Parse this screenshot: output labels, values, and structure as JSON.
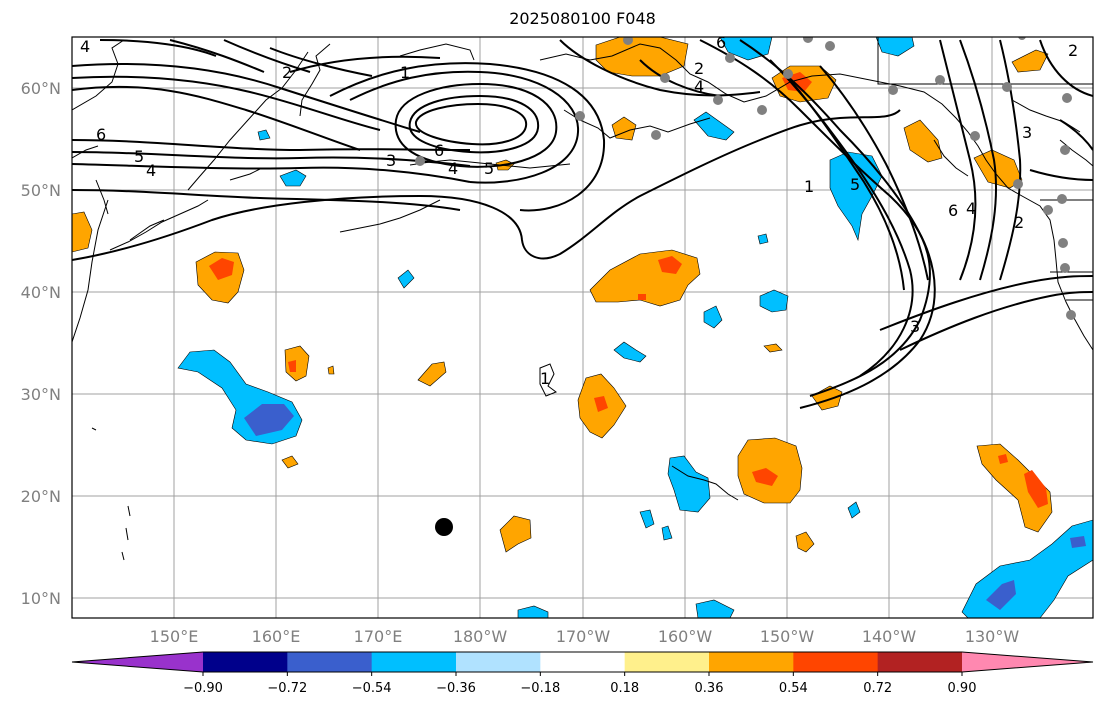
{
  "title": "2025080100 F048",
  "longitude_labels": [
    "150°E",
    "160°E",
    "170°E",
    "180°W",
    "170°W",
    "160°W",
    "150°W",
    "140°W",
    "130°W"
  ],
  "latitude_labels": [
    "60°N",
    "50°N",
    "40°N",
    "30°N",
    "20°N",
    "10°N"
  ],
  "contour_labels": [
    "4",
    "2",
    "1",
    "6",
    "5",
    "4",
    "3",
    "6",
    "4",
    "5",
    "2",
    "6",
    "4",
    "5",
    "1",
    "3",
    "6",
    "4",
    "2",
    "3",
    "1",
    "2"
  ],
  "colorbar": {
    "ticks": [
      "−0.90",
      "−0.72",
      "−0.54",
      "−0.36",
      "−0.18",
      "0.18",
      "0.36",
      "0.54",
      "0.72",
      "0.90"
    ],
    "colors": [
      "#9932cc",
      "#00008b",
      "#3a5fcd",
      "#00bfff",
      "#b0e2ff",
      "#ffffff",
      "#fff08c",
      "#ffa500",
      "#ff4500",
      "#b22222",
      "#ff88b0"
    ]
  },
  "colors": {
    "frame": "#000000",
    "grid": "#a0a0a0",
    "coast": "#000000",
    "station": "#808080"
  }
}
